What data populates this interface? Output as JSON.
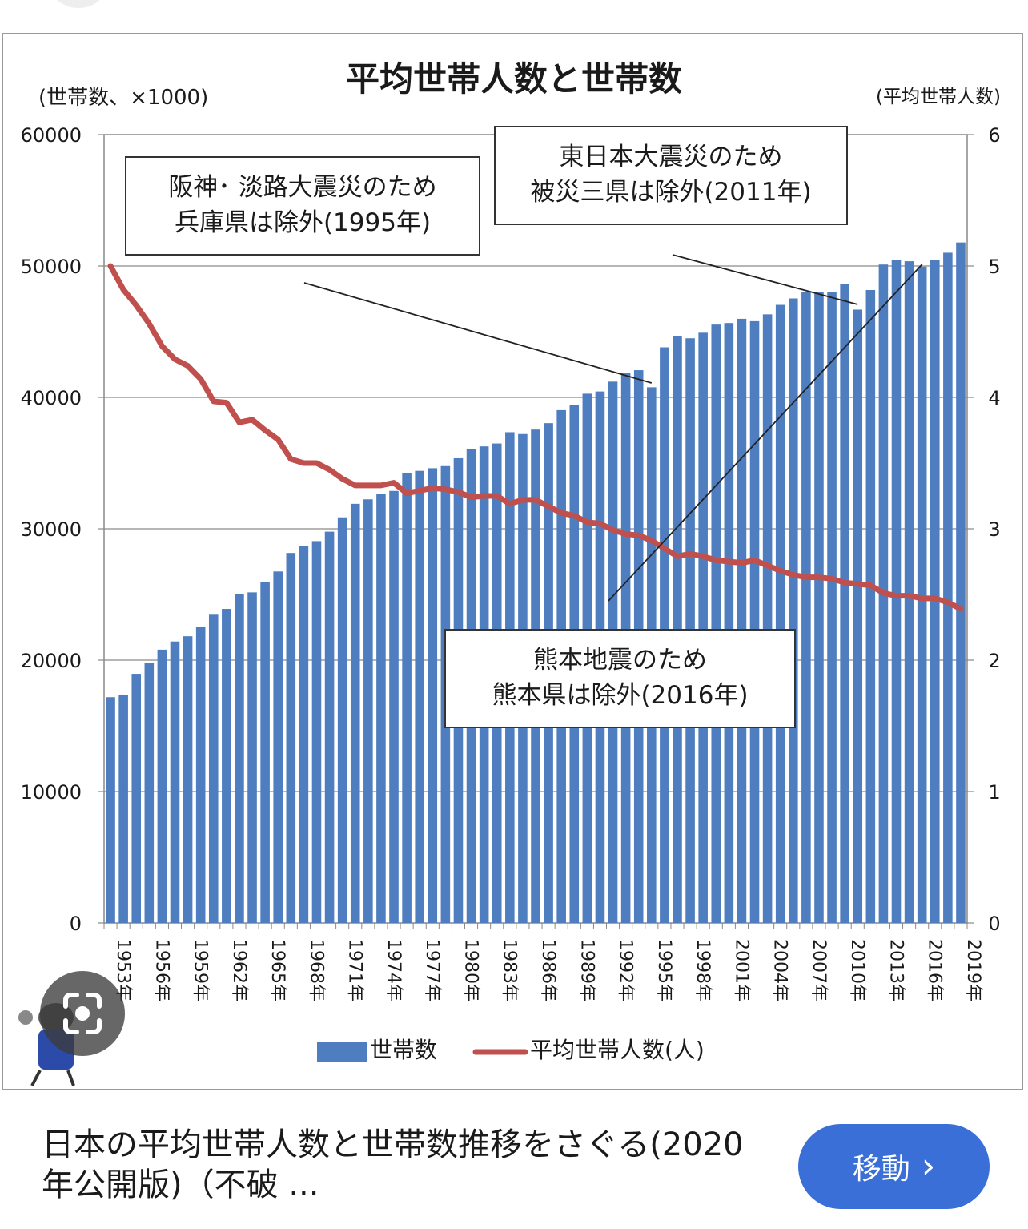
{
  "chart_data": {
    "type": "bar",
    "title": "平均世帯人数と世帯数",
    "y_left_label": "(世帯数、×1000)",
    "y_right_label": "(平均世帯人数)",
    "y_left_ticks": [
      "60000",
      "50000",
      "40000",
      "30000",
      "20000",
      "10000",
      "0"
    ],
    "y_right_ticks": [
      "6",
      "5",
      "4",
      "3",
      "2",
      "1",
      "0"
    ],
    "ylim_left": [
      0,
      60000
    ],
    "ylim_right": [
      0,
      6
    ],
    "grid": true,
    "legend_position": "bottom",
    "x_tick_labels": [
      "1953年",
      "1956年",
      "1959年",
      "1962年",
      "1965年",
      "1968年",
      "1971年",
      "1974年",
      "1977年",
      "1980年",
      "1983年",
      "1986年",
      "1989年",
      "1992年",
      "1995年",
      "1998年",
      "2001年",
      "2004年",
      "2007年",
      "2010年",
      "2013年",
      "2016年",
      "2019年"
    ],
    "categories": [
      "1953",
      "1954",
      "1955",
      "1956",
      "1957",
      "1958",
      "1959",
      "1960",
      "1961",
      "1962",
      "1963",
      "1964",
      "1965",
      "1966",
      "1967",
      "1968",
      "1969",
      "1970",
      "1971",
      "1972",
      "1973",
      "1974",
      "1975",
      "1976",
      "1977",
      "1978",
      "1979",
      "1980",
      "1981",
      "1982",
      "1983",
      "1984",
      "1985",
      "1986",
      "1987",
      "1988",
      "1989",
      "1990",
      "1991",
      "1992",
      "1993",
      "1994",
      "1995",
      "1996",
      "1997",
      "1998",
      "1999",
      "2000",
      "2001",
      "2002",
      "2003",
      "2004",
      "2005",
      "2006",
      "2007",
      "2008",
      "2009",
      "2010",
      "2011",
      "2012",
      "2013",
      "2014",
      "2015",
      "2016",
      "2017",
      "2018",
      "2019"
    ],
    "series": [
      {
        "name": "世帯数",
        "type": "bar",
        "axis": "left",
        "color": "#4f7ec0",
        "values": [
          17180,
          17380,
          18960,
          19790,
          20800,
          21420,
          21820,
          22510,
          23520,
          23900,
          25030,
          25160,
          25940,
          26750,
          28160,
          28670,
          29060,
          29780,
          30870,
          31900,
          32240,
          32670,
          32880,
          34270,
          34410,
          34610,
          34770,
          35370,
          36090,
          36270,
          36490,
          37350,
          37210,
          37550,
          38040,
          39030,
          39420,
          40280,
          40450,
          41200,
          41830,
          42070,
          40770,
          43810,
          44670,
          44500,
          44920,
          45540,
          45660,
          45980,
          45800,
          46320,
          47040,
          47530,
          48020,
          48010,
          48010,
          48640,
          46680,
          48170,
          50110,
          50430,
          50360,
          49950,
          50430,
          51010,
          51790
        ]
      },
      {
        "name": "平均世帯人数(人)",
        "type": "line",
        "axis": "right",
        "color": "#c0504d",
        "values": [
          5.0,
          4.82,
          4.7,
          4.56,
          4.39,
          4.29,
          4.24,
          4.14,
          3.97,
          3.96,
          3.81,
          3.83,
          3.75,
          3.68,
          3.53,
          3.5,
          3.5,
          3.45,
          3.38,
          3.33,
          3.33,
          3.33,
          3.35,
          3.27,
          3.29,
          3.31,
          3.3,
          3.28,
          3.24,
          3.25,
          3.25,
          3.19,
          3.22,
          3.22,
          3.17,
          3.12,
          3.1,
          3.05,
          3.04,
          2.99,
          2.96,
          2.95,
          2.91,
          2.85,
          2.79,
          2.81,
          2.79,
          2.76,
          2.75,
          2.74,
          2.76,
          2.72,
          2.68,
          2.65,
          2.63,
          2.63,
          2.62,
          2.59,
          2.58,
          2.57,
          2.51,
          2.49,
          2.49,
          2.47,
          2.47,
          2.44,
          2.39
        ]
      }
    ],
    "annotations": [
      {
        "lines": [
          "阪神･ 淡路大震災のため",
          "兵庫県は除外(1995年)"
        ],
        "points_to": "1995"
      },
      {
        "lines": [
          "東日本大震災のため",
          "被災三県は除外(2011年)"
        ],
        "points_to": "2011"
      },
      {
        "lines": [
          "熊本地震のため",
          "熊本県は除外(2016年)"
        ],
        "points_to": "2016"
      }
    ],
    "legend": [
      "世帯数",
      "平均世帯人数(人)"
    ]
  },
  "caption": "日本の平均世帯人数と世帯数推移をさぐる(2020年公開版)（不破 ...",
  "go_button": {
    "label": "移動",
    "arrow": "›"
  },
  "icons": {
    "lens": "google-lens-icon",
    "mascot": "mascot-icon"
  }
}
